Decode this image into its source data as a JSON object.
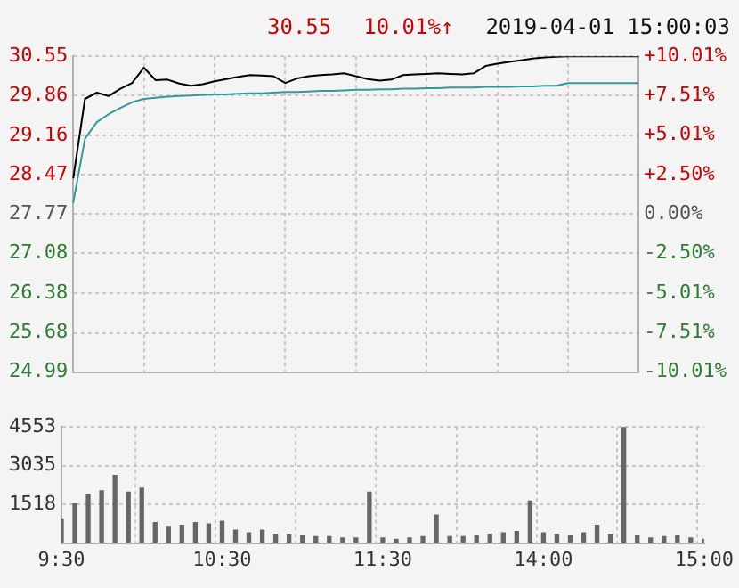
{
  "chart_data": [
    {
      "type": "line",
      "title": "2019-04-01 15:00:03",
      "annotations": [
        "30.55",
        "10.01%↑"
      ],
      "categories": [
        null,
        null,
        null,
        null,
        null,
        null,
        null,
        null,
        null,
        null,
        null,
        null,
        null,
        null,
        null,
        null,
        null,
        null,
        null,
        null,
        null,
        null,
        null,
        null,
        null,
        null,
        null,
        null,
        null,
        null,
        null,
        null,
        null,
        null,
        null,
        null,
        null,
        null,
        null,
        null,
        null,
        null,
        null,
        null,
        null,
        null,
        null,
        null,
        null
      ],
      "ylim": [
        24.99,
        30.55
      ],
      "yticks": [
        24.99,
        25.68,
        26.38,
        27.08,
        27.77,
        28.47,
        29.16,
        29.86,
        30.55
      ],
      "y2lim": [
        -10.01,
        10.01
      ],
      "y2ticks": [
        {
          "value": -10.01,
          "label": "-10.01%"
        },
        {
          "value": -7.51,
          "label": "-7.51%"
        },
        {
          "value": -5.01,
          "label": "-5.01%"
        },
        {
          "value": -2.5,
          "label": "-2.50%"
        },
        {
          "value": 0,
          "label": "0.00%"
        },
        {
          "value": 2.5,
          "label": "+2.50%"
        },
        {
          "value": 5.01,
          "label": "+5.01%"
        },
        {
          "value": 7.51,
          "label": "+7.51%"
        },
        {
          "value": 10.01,
          "label": "+10.01%"
        }
      ],
      "grid": true,
      "legend": false,
      "marker": "none",
      "line_style": "solid",
      "series": [
        {
          "color": "#000000",
          "values": [
            28.4,
            29.8,
            29.91,
            29.85,
            29.98,
            30.08,
            30.35,
            30.13,
            30.14,
            30.07,
            30.03,
            30.06,
            30.11,
            30.15,
            30.19,
            30.22,
            30.21,
            30.2,
            30.08,
            30.16,
            30.2,
            30.22,
            30.23,
            30.25,
            30.2,
            30.15,
            30.12,
            30.14,
            30.22,
            30.23,
            30.24,
            30.25,
            30.24,
            30.23,
            30.25,
            30.38,
            30.42,
            30.45,
            30.48,
            30.51,
            30.53,
            30.54,
            30.55,
            30.55,
            30.55,
            30.55,
            30.55,
            30.55,
            30.55
          ]
        },
        {
          "color": "#339999",
          "values": [
            27.97,
            29.1,
            29.39,
            29.53,
            29.64,
            29.74,
            29.8,
            29.82,
            29.84,
            29.85,
            29.86,
            29.87,
            29.88,
            29.88,
            29.89,
            29.9,
            29.9,
            29.91,
            29.92,
            29.92,
            29.93,
            29.94,
            29.94,
            29.95,
            29.96,
            29.96,
            29.97,
            29.97,
            29.98,
            29.98,
            29.99,
            29.99,
            30.0,
            30.0,
            30.0,
            30.01,
            30.01,
            30.01,
            30.02,
            30.02,
            30.03,
            30.03,
            30.08,
            30.08,
            30.08,
            30.08,
            30.08,
            30.08,
            30.08
          ]
        }
      ]
    },
    {
      "type": "bar",
      "categories": [
        "9:30",
        null,
        null,
        null,
        null,
        null,
        null,
        null,
        null,
        null,
        null,
        null,
        "10:30",
        null,
        null,
        null,
        null,
        null,
        null,
        null,
        null,
        null,
        null,
        null,
        "11:30",
        null,
        null,
        null,
        null,
        null,
        null,
        null,
        null,
        null,
        null,
        null,
        "14:00",
        null,
        null,
        null,
        null,
        null,
        null,
        null,
        null,
        null,
        null,
        null,
        "15:00"
      ],
      "ylim": [
        0,
        4553
      ],
      "yticks": [
        {
          "value": 0,
          "label": null
        },
        1518,
        3035,
        4553
      ],
      "grid": true,
      "legend": false,
      "series": [
        {
          "color": "#666666",
          "values": [
            950,
            1530,
            1910,
            2050,
            2650,
            2000,
            2150,
            800,
            650,
            700,
            800,
            750,
            850,
            500,
            400,
            500,
            350,
            350,
            300,
            250,
            250,
            200,
            200,
            2000,
            200,
            150,
            200,
            250,
            1100,
            250,
            250,
            300,
            350,
            400,
            450,
            1650,
            400,
            350,
            300,
            400,
            700,
            350,
            4550,
            300,
            200,
            250,
            300,
            200,
            150
          ]
        }
      ]
    }
  ]
}
